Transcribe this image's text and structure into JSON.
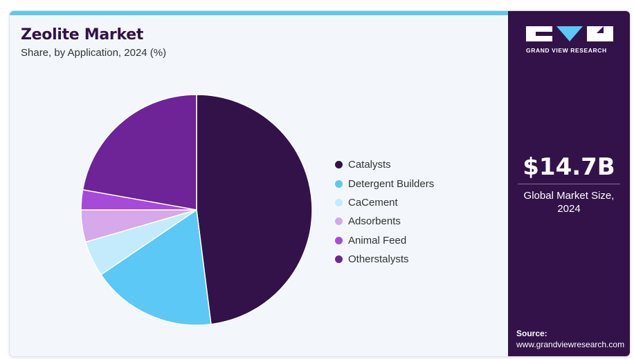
{
  "header": {
    "title": "Zeolite Market",
    "subtitle": "Share, by Application, 2024 (%)"
  },
  "chart_data": {
    "type": "pie",
    "title": "Zeolite Market",
    "subtitle": "Share, by Application, 2024 (%)",
    "categories": [
      "Catalysts",
      "Detergent Builders",
      "CaCement",
      "Adsorbents",
      "Animal Feed",
      "Otherstalysts"
    ],
    "values": [
      48.0,
      17.5,
      5.0,
      4.5,
      2.8,
      22.2
    ],
    "colors": [
      "#33124a",
      "#5bc8f5",
      "#c3ebfb",
      "#d5a9ea",
      "#a64ad8",
      "#6e2396"
    ],
    "legend_position": "right",
    "start_angle": "12 o'clock",
    "direction": "clockwise"
  },
  "side_panel": {
    "logo_text": "GRAND VIEW RESEARCH",
    "market_value": "$14.7B",
    "market_label": "Global Market Size, 2024",
    "source_label": "Source:",
    "source_url": "www.grandviewresearch.com"
  },
  "colors": {
    "brand_dark": "#33124a",
    "accent_blue": "#5bc8f5",
    "panel_background": "#f3f7fb"
  }
}
